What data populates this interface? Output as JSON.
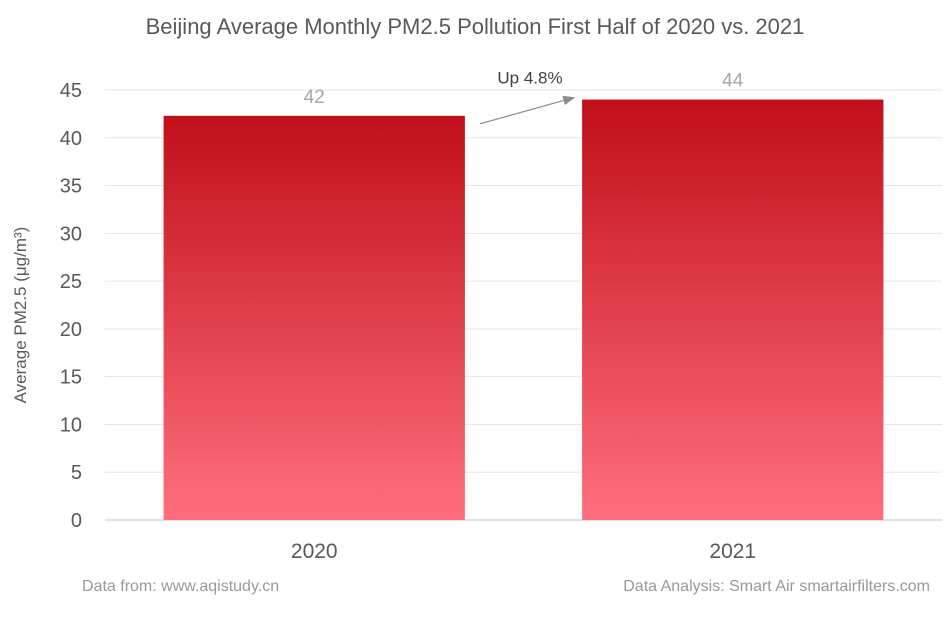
{
  "chart_data": {
    "type": "bar",
    "title": "Beijing Average Monthly PM2.5 Pollution First Half of 2020 vs. 2021",
    "ylabel": "Average PM2.5 (μg/m³)",
    "xlabel": "",
    "categories": [
      "2020",
      "2021"
    ],
    "values": [
      42.3,
      44
    ],
    "data_labels": [
      "42",
      "44"
    ],
    "ylim": [
      0,
      45
    ],
    "yticks": [
      0,
      5,
      10,
      15,
      20,
      25,
      30,
      35,
      40,
      45
    ],
    "grid": true,
    "bar_color_top": "#c00f1a",
    "bar_color_bottom": "#ff6f7d",
    "annotation": {
      "text": "Up 4.8%",
      "from_category": "2020",
      "to_category": "2021"
    }
  },
  "footer": {
    "source": "Data from: www.aqistudy.cn",
    "analysis": "Data Analysis: Smart Air smartairfilters.com"
  }
}
